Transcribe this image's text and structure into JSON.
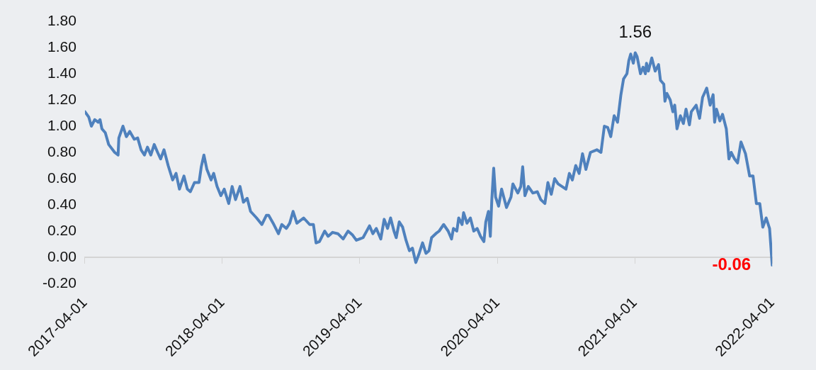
{
  "chart_data": {
    "type": "line",
    "marker": "none",
    "xlim": [
      "2017-04-01",
      "2022-04-01"
    ],
    "xticks": [
      "2017-04-01",
      "2018-04-01",
      "2019-04-01",
      "2020-04-01",
      "2021-04-01",
      "2022-04-01"
    ],
    "ylim": [
      -0.2,
      1.8
    ],
    "yticks": [
      {
        "value": -0.2,
        "label": "-0.20"
      },
      {
        "value": 0,
        "label": "0.00"
      },
      {
        "value": 0.2,
        "label": "0.20"
      },
      {
        "value": 0.4,
        "label": "0.40"
      },
      {
        "value": 0.6,
        "label": "0.60"
      },
      {
        "value": 0.8,
        "label": "0.80"
      },
      {
        "value": 1,
        "label": "1.00"
      },
      {
        "value": 1.2,
        "label": "1.20"
      },
      {
        "value": 1.4,
        "label": "1.40"
      },
      {
        "value": 1.6,
        "label": "1.60"
      },
      {
        "value": 1.8,
        "label": "1.80"
      }
    ],
    "series": [
      {
        "color": "#4f81bd",
        "x": [
          "2017-04-01",
          "2017-04-11",
          "2017-04-18",
          "2017-04-27",
          "2017-05-06",
          "2017-05-11",
          "2017-05-16",
          "2017-05-25",
          "2017-06-03",
          "2017-06-19",
          "2017-06-28",
          "2017-06-30",
          "2017-07-11",
          "2017-07-20",
          "2017-07-29",
          "2017-08-10",
          "2017-08-19",
          "2017-08-28",
          "2017-09-06",
          "2017-09-14",
          "2017-09-23",
          "2017-10-02",
          "2017-10-11",
          "2017-10-19",
          "2017-10-28",
          "2017-11-08",
          "2017-11-20",
          "2017-11-29",
          "2017-12-08",
          "2017-12-20",
          "2017-12-29",
          "2018-01-06",
          "2018-01-17",
          "2018-01-29",
          "2018-02-04",
          "2018-02-11",
          "2018-02-19",
          "2018-03-02",
          "2018-03-09",
          "2018-03-18",
          "2018-03-28",
          "2018-04-06",
          "2018-04-18",
          "2018-04-27",
          "2018-05-06",
          "2018-05-18",
          "2018-05-27",
          "2018-06-06",
          "2018-06-15",
          "2018-07-01",
          "2018-07-15",
          "2018-07-27",
          "2018-08-02",
          "2018-08-14",
          "2018-08-28",
          "2018-09-06",
          "2018-09-18",
          "2018-09-27",
          "2018-10-06",
          "2018-10-16",
          "2018-11-03",
          "2018-11-19",
          "2018-11-29",
          "2018-12-06",
          "2018-12-15",
          "2018-12-29",
          "2019-01-07",
          "2019-01-19",
          "2019-02-02",
          "2019-02-16",
          "2019-03-01",
          "2019-03-13",
          "2019-03-23",
          "2019-04-10",
          "2019-04-27",
          "2019-05-06",
          "2019-05-15",
          "2019-05-27",
          "2019-06-05",
          "2019-06-14",
          "2019-06-22",
          "2019-07-01",
          "2019-07-07",
          "2019-07-15",
          "2019-07-24",
          "2019-08-02",
          "2019-08-11",
          "2019-08-19",
          "2019-08-28",
          "2019-09-06",
          "2019-09-15",
          "2019-09-24",
          "2019-10-02",
          "2019-10-09",
          "2019-10-20",
          "2019-10-29",
          "2019-11-10",
          "2019-11-22",
          "2019-12-01",
          "2019-12-06",
          "2019-12-15",
          "2019-12-20",
          "2019-12-29",
          "2020-01-02",
          "2020-01-11",
          "2020-01-20",
          "2020-01-29",
          "2020-02-07",
          "2020-02-16",
          "2020-02-25",
          "2020-03-01",
          "2020-03-08",
          "2020-03-13",
          "2020-03-17",
          "2020-03-22",
          "2020-03-27",
          "2020-04-04",
          "2020-04-12",
          "2020-04-25",
          "2020-05-07",
          "2020-05-12",
          "2020-05-25",
          "2020-06-02",
          "2020-06-07",
          "2020-06-13",
          "2020-06-22",
          "2020-07-04",
          "2020-07-16",
          "2020-07-25",
          "2020-08-05",
          "2020-08-13",
          "2020-08-22",
          "2020-08-31",
          "2020-09-09",
          "2020-09-30",
          "2020-10-09",
          "2020-10-17",
          "2020-10-26",
          "2020-11-04",
          "2020-11-13",
          "2020-11-22",
          "2020-12-04",
          "2020-12-21",
          "2021-01-01",
          "2021-01-10",
          "2021-01-19",
          "2021-01-27",
          "2021-02-05",
          "2021-02-14",
          "2021-02-23",
          "2021-03-02",
          "2021-03-11",
          "2021-03-16",
          "2021-03-21",
          "2021-03-28",
          "2021-04-02",
          "2021-04-07",
          "2021-04-16",
          "2021-04-23",
          "2021-04-29",
          "2021-05-02",
          "2021-05-07",
          "2021-05-16",
          "2021-05-25",
          "2021-06-03",
          "2021-06-08",
          "2021-06-17",
          "2021-06-20",
          "2021-06-25",
          "2021-07-04",
          "2021-07-11",
          "2021-07-16",
          "2021-07-22",
          "2021-07-31",
          "2021-08-08",
          "2021-08-15",
          "2021-08-24",
          "2021-08-29",
          "2021-09-11",
          "2021-09-20",
          "2021-09-28",
          "2021-10-09",
          "2021-10-18",
          "2021-10-26",
          "2021-10-30",
          "2021-11-04",
          "2021-11-13",
          "2021-11-20",
          "2021-11-30",
          "2021-12-07",
          "2021-12-13",
          "2021-12-22",
          "2021-12-30",
          "2022-01-08",
          "2022-01-20",
          "2022-01-31",
          "2022-02-09",
          "2022-02-18",
          "2022-02-27",
          "2022-03-07",
          "2022-03-16",
          "2022-03-25",
          "2022-04-01"
        ],
        "values": [
          1.11,
          1.07,
          1.0,
          1.05,
          1.03,
          1.05,
          0.98,
          0.95,
          0.86,
          0.8,
          0.78,
          0.91,
          1.0,
          0.92,
          0.96,
          0.9,
          0.91,
          0.82,
          0.78,
          0.84,
          0.78,
          0.86,
          0.8,
          0.75,
          0.82,
          0.7,
          0.59,
          0.64,
          0.52,
          0.62,
          0.52,
          0.5,
          0.57,
          0.57,
          0.69,
          0.78,
          0.67,
          0.59,
          0.64,
          0.54,
          0.47,
          0.52,
          0.41,
          0.54,
          0.44,
          0.54,
          0.42,
          0.45,
          0.35,
          0.3,
          0.25,
          0.32,
          0.32,
          0.26,
          0.18,
          0.25,
          0.22,
          0.26,
          0.35,
          0.26,
          0.3,
          0.25,
          0.25,
          0.11,
          0.12,
          0.2,
          0.16,
          0.19,
          0.18,
          0.14,
          0.2,
          0.17,
          0.13,
          0.15,
          0.24,
          0.18,
          0.22,
          0.14,
          0.29,
          0.22,
          0.3,
          0.2,
          0.15,
          0.27,
          0.23,
          0.13,
          0.05,
          0.07,
          -0.04,
          0.03,
          0.11,
          0.03,
          0.05,
          0.15,
          0.18,
          0.2,
          0.25,
          0.2,
          0.14,
          0.22,
          0.2,
          0.3,
          0.25,
          0.34,
          0.26,
          0.3,
          0.2,
          0.22,
          0.16,
          0.12,
          0.27,
          0.35,
          0.16,
          0.44,
          0.68,
          0.46,
          0.39,
          0.52,
          0.38,
          0.46,
          0.56,
          0.49,
          0.54,
          0.69,
          0.47,
          0.54,
          0.49,
          0.5,
          0.44,
          0.41,
          0.57,
          0.48,
          0.6,
          0.56,
          0.52,
          0.64,
          0.59,
          0.7,
          0.64,
          0.79,
          0.67,
          0.8,
          0.82,
          0.8,
          1.0,
          0.99,
          0.92,
          1.08,
          1.03,
          1.24,
          1.36,
          1.4,
          1.5,
          1.55,
          1.48,
          1.56,
          1.53,
          1.4,
          1.45,
          1.4,
          1.48,
          1.42,
          1.52,
          1.42,
          1.47,
          1.35,
          1.32,
          1.19,
          1.25,
          1.2,
          1.11,
          1.16,
          0.98,
          1.08,
          1.02,
          1.13,
          1.01,
          1.11,
          1.16,
          1.06,
          1.22,
          1.29,
          1.16,
          1.24,
          1.03,
          1.13,
          1.04,
          1.09,
          0.98,
          0.75,
          0.8,
          0.75,
          0.72,
          0.88,
          0.79,
          0.62,
          0.62,
          0.41,
          0.41,
          0.23,
          0.3,
          0.22,
          -0.06
        ],
        "value_labels": [
          null,
          null,
          null,
          null,
          null,
          null,
          null,
          null,
          null,
          null,
          null,
          null,
          null,
          null,
          null,
          null,
          null,
          null,
          null,
          null,
          null,
          null,
          null,
          null,
          null,
          null,
          null,
          null,
          null,
          null,
          null,
          null,
          null,
          null,
          null,
          null,
          null,
          null,
          null,
          null,
          null,
          null,
          null,
          null,
          null,
          null,
          null,
          null,
          null,
          null,
          null,
          null,
          null,
          null,
          null,
          null,
          null,
          null,
          null,
          null,
          null,
          null,
          null,
          null,
          null,
          null,
          null,
          null,
          null,
          null,
          null,
          null,
          null,
          null,
          null,
          null,
          null,
          null,
          null,
          null,
          null,
          null,
          null,
          null,
          null,
          null,
          null,
          null,
          null,
          null,
          null,
          null,
          null,
          null,
          null,
          null,
          null,
          null,
          null,
          null,
          null,
          null,
          null,
          null,
          null,
          null,
          null,
          null,
          null,
          null,
          null,
          null,
          null,
          null,
          null,
          null,
          null,
          null,
          null,
          null,
          null,
          null,
          null,
          null,
          null,
          null,
          null,
          null,
          null,
          null,
          null,
          null,
          null,
          null,
          null,
          null,
          null,
          null,
          null,
          null,
          null,
          null,
          null,
          null,
          null,
          null,
          null,
          null,
          null,
          null,
          null,
          null,
          null,
          null,
          null,
          "1.56",
          null,
          null,
          null,
          null,
          null,
          null,
          null,
          null,
          null,
          null,
          null,
          null,
          null,
          null,
          null,
          null,
          null,
          null,
          null,
          null,
          null,
          null,
          null,
          null,
          null,
          null,
          null,
          null,
          null,
          null,
          null,
          null,
          null,
          null,
          null,
          null,
          null,
          null,
          null,
          null,
          null,
          null,
          null,
          null,
          null,
          null,
          "-0.06"
        ]
      }
    ]
  }
}
